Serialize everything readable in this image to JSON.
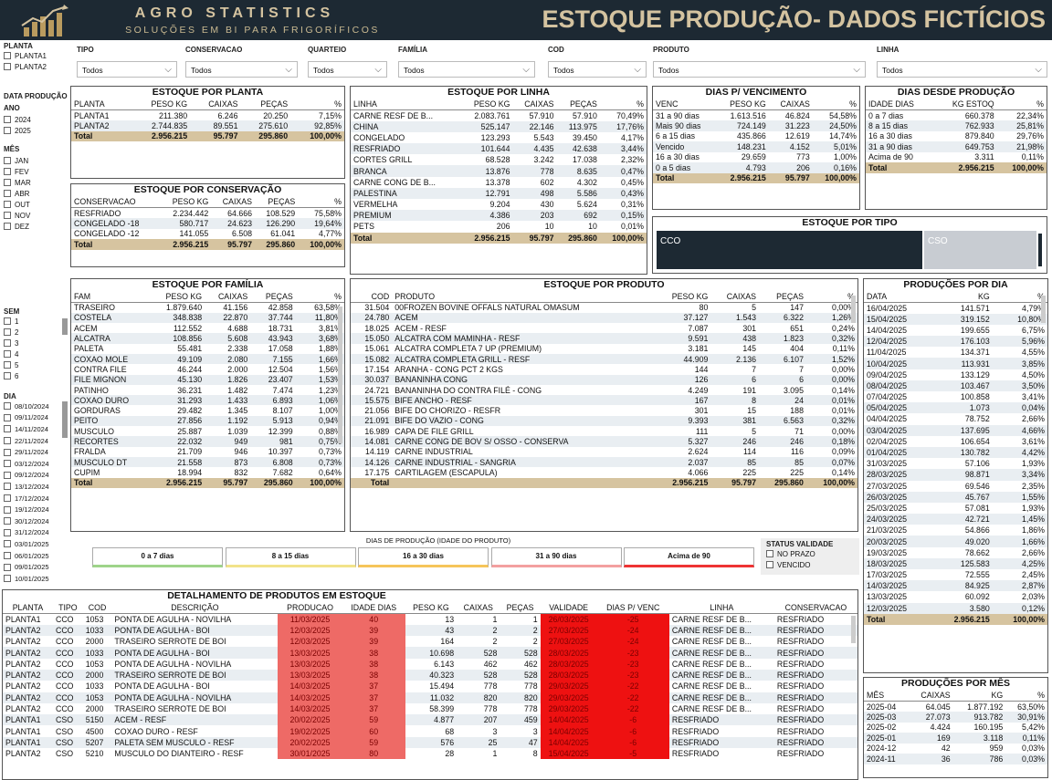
{
  "header": {
    "brand": "AGRO STATISTICS",
    "brand_sub": "SOLUÇÕES EM BI PARA FRIGORÍFICOS",
    "title": "ESTOQUE PRODUÇÃO- DADOS FICTÍCIOS"
  },
  "colors": {
    "header_bg": "#1d2933",
    "gold": "#d4c3a0",
    "total_row": "#d6c4a0",
    "alert_red": "#e11111",
    "light_red": "#ee6a66"
  },
  "sidebar": {
    "planta_label": "PLANTA",
    "plantas": [
      "PLANTA1",
      "PLANTA2"
    ],
    "data_producao_label": "DATA PRODUÇÃO",
    "ano_label": "ANO",
    "anos": [
      "2024",
      "2025"
    ],
    "mes_label": "MÊS",
    "meses": [
      "JAN",
      "FEV",
      "MAR",
      "ABR",
      "OUT",
      "NOV",
      "DEZ"
    ],
    "sem_label": "SEM",
    "semanas": [
      "1",
      "2",
      "3",
      "4",
      "5",
      "6"
    ],
    "dia_label": "DIA",
    "dias": [
      "08/10/2024",
      "09/11/2024",
      "14/11/2024",
      "22/11/2024",
      "29/11/2024",
      "03/12/2024",
      "09/12/2024",
      "13/12/2024",
      "17/12/2024",
      "19/12/2024",
      "30/12/2024",
      "31/12/2024",
      "03/01/2025",
      "06/01/2025",
      "09/01/2025",
      "10/01/2025"
    ]
  },
  "filters": [
    {
      "label": "TIPO",
      "value": "Todos"
    },
    {
      "label": "CONSERVACAO",
      "value": "Todos"
    },
    {
      "label": "QUARTEIO",
      "value": "Todos"
    },
    {
      "label": "FAMÍLIA",
      "value": "Todos"
    },
    {
      "label": "COD",
      "value": "Todos"
    },
    {
      "label": "PRODUTO",
      "value": "Todos"
    },
    {
      "label": "LINHA",
      "value": "Todos"
    }
  ],
  "estoque_planta": {
    "title": "ESTOQUE POR PLANTA",
    "headers": [
      "PLANTA",
      "PESO KG",
      "CAIXAS",
      "PEÇAS",
      "%"
    ],
    "rows": [
      [
        "PLANTA1",
        "211.380",
        "6.246",
        "20.250",
        "7,15%"
      ],
      [
        "PLANTA2",
        "2.744.835",
        "89.551",
        "275.610",
        "92,85%"
      ]
    ],
    "total": [
      "Total",
      "2.956.215",
      "95.797",
      "295.860",
      "100,00%"
    ]
  },
  "estoque_conservacao": {
    "title": "ESTOQUE POR CONSERVAÇÃO",
    "headers": [
      "CONSERVACAO",
      "PESO KG",
      "CAIXAS",
      "PEÇAS",
      "%"
    ],
    "rows": [
      [
        "RESFRIADO",
        "2.234.442",
        "64.666",
        "108.529",
        "75,58%"
      ],
      [
        "CONGELADO -18",
        "580.717",
        "24.623",
        "126.290",
        "19,64%"
      ],
      [
        "CONGELADO -12",
        "141.055",
        "6.508",
        "61.041",
        "4,77%"
      ]
    ],
    "total": [
      "Total",
      "2.956.215",
      "95.797",
      "295.860",
      "100,00%"
    ]
  },
  "estoque_linha": {
    "title": "ESTOQUE POR LINHA",
    "headers": [
      "LINHA",
      "PESO KG",
      "CAIXAS",
      "PEÇAS",
      "%"
    ],
    "rows": [
      [
        "CARNE RESF DE B...",
        "2.083.761",
        "57.910",
        "57.910",
        "70,49%"
      ],
      [
        "CHINA",
        "525.147",
        "22.146",
        "113.975",
        "17,76%"
      ],
      [
        "CONGELADO",
        "123.293",
        "5.543",
        "39.450",
        "4,17%"
      ],
      [
        "RESFRIADO",
        "101.644",
        "4.435",
        "42.638",
        "3,44%"
      ],
      [
        "CORTES GRILL",
        "68.528",
        "3.242",
        "17.038",
        "2,32%"
      ],
      [
        "BRANCA",
        "13.876",
        "778",
        "8.635",
        "0,47%"
      ],
      [
        "CARNE CONG DE B...",
        "13.378",
        "602",
        "4.302",
        "0,45%"
      ],
      [
        "PALESTINA",
        "12.791",
        "498",
        "5.586",
        "0,43%"
      ],
      [
        "VERMELHA",
        "9.204",
        "430",
        "5.624",
        "0,31%"
      ],
      [
        "PREMIUM",
        "4.386",
        "203",
        "692",
        "0,15%"
      ],
      [
        "PETS",
        "206",
        "10",
        "10",
        "0,01%"
      ]
    ],
    "total": [
      "Total",
      "2.956.215",
      "95.797",
      "295.860",
      "100,00%"
    ]
  },
  "dias_vencimento": {
    "title": "DIAS P/ VENCIMENTO",
    "headers": [
      "VENC",
      "PESO KG",
      "CAIXAS",
      "%"
    ],
    "rows": [
      [
        "31 a 90 dias",
        "1.613.516",
        "46.824",
        "54,58%"
      ],
      [
        "Mais 90 dias",
        "724.149",
        "31.223",
        "24,50%"
      ],
      [
        "6 a 15 dias",
        "435.866",
        "12.619",
        "14,74%"
      ],
      [
        "Vencido",
        "148.231",
        "4.152",
        "5,01%"
      ],
      [
        "16 a 30 dias",
        "29.659",
        "773",
        "1,00%"
      ],
      [
        "0 a 5 dias",
        "4.793",
        "206",
        "0,16%"
      ]
    ],
    "total": [
      "Total",
      "2.956.215",
      "95.797",
      "100,00%"
    ]
  },
  "dias_producao": {
    "title": "DIAS DESDE PRODUÇÃO",
    "headers": [
      "IDADE DIAS",
      "KG ESTOQ",
      "%"
    ],
    "rows": [
      [
        "0 a 7 dias",
        "660.378",
        "22,34%"
      ],
      [
        "8 a 15 dias",
        "762.933",
        "25,81%"
      ],
      [
        "16 a 30 dias",
        "879.840",
        "29,76%"
      ],
      [
        "31 a 90 dias",
        "649.753",
        "21,98%"
      ],
      [
        "Acima de 90",
        "3.311",
        "0,11%"
      ]
    ],
    "total": [
      "Total",
      "2.956.215",
      "100,00%"
    ]
  },
  "estoque_tipo": {
    "title": "ESTOQUE POR TIPO",
    "cco": "CCO",
    "cso": "CSO",
    "cco_share": 0.7,
    "cso_share": 0.3
  },
  "estoque_familia": {
    "title": "ESTOQUE POR FAMÍLIA",
    "headers": [
      "FAM",
      "PESO KG",
      "CAIXAS",
      "PEÇAS",
      "%"
    ],
    "rows": [
      [
        "TRASEIRO",
        "1.879.640",
        "41.156",
        "42.858",
        "63,58%"
      ],
      [
        "COSTELA",
        "348.838",
        "22.870",
        "37.744",
        "11,80%"
      ],
      [
        "ACEM",
        "112.552",
        "4.688",
        "18.731",
        "3,81%"
      ],
      [
        "ALCATRA",
        "108.856",
        "5.608",
        "43.943",
        "3,68%"
      ],
      [
        "PALETA",
        "55.481",
        "2.338",
        "17.058",
        "1,88%"
      ],
      [
        "COXAO MOLE",
        "49.109",
        "2.080",
        "7.155",
        "1,66%"
      ],
      [
        "CONTRA FILE",
        "46.244",
        "2.000",
        "12.504",
        "1,56%"
      ],
      [
        "FILE MIGNON",
        "45.130",
        "1.826",
        "23.407",
        "1,53%"
      ],
      [
        "PATINHO",
        "36.231",
        "1.482",
        "7.474",
        "1,23%"
      ],
      [
        "COXAO DURO",
        "31.293",
        "1.433",
        "6.893",
        "1,06%"
      ],
      [
        "GORDURAS",
        "29.482",
        "1.345",
        "8.107",
        "1,00%"
      ],
      [
        "PEITO",
        "27.856",
        "1.192",
        "5.913",
        "0,94%"
      ],
      [
        "MUSCULO",
        "25.887",
        "1.039",
        "12.399",
        "0,88%"
      ],
      [
        "RECORTES",
        "22.032",
        "949",
        "981",
        "0,75%"
      ],
      [
        "FRALDA",
        "21.709",
        "946",
        "10.397",
        "0,73%"
      ],
      [
        "MUSCULO DT",
        "21.558",
        "873",
        "6.808",
        "0,73%"
      ],
      [
        "CUPIM",
        "18.994",
        "832",
        "7.682",
        "0,64%"
      ]
    ],
    "total": [
      "Total",
      "2.956.215",
      "95.797",
      "295.860",
      "100,00%"
    ]
  },
  "estoque_produto": {
    "title": "ESTOQUE POR PRODUTO",
    "headers": [
      "COD",
      "PRODUTO",
      "PESO KG",
      "CAIXAS",
      "PEÇAS",
      "%"
    ],
    "rows": [
      [
        "31.504",
        "00FROZEN BOVINE OFFALS NATURAL OMASUM",
        "80",
        "5",
        "147",
        "0,00%"
      ],
      [
        "24.780",
        "ACEM",
        "37.127",
        "1.543",
        "6.322",
        "1,26%"
      ],
      [
        "18.025",
        "ACEM - RESF",
        "7.087",
        "301",
        "651",
        "0,24%"
      ],
      [
        "15.050",
        "ALCATRA COM MAMINHA - RESF",
        "9.591",
        "438",
        "1.823",
        "0,32%"
      ],
      [
        "15.061",
        "ALCATRA COMPLETA 7 UP (PREMIUM)",
        "3.181",
        "145",
        "404",
        "0,11%"
      ],
      [
        "15.082",
        "ALCATRA COMPLETA GRILL - RESF",
        "44.909",
        "2.136",
        "6.107",
        "1,52%"
      ],
      [
        "17.154",
        "ARANHA - CONG PCT 2 KGS",
        "144",
        "7",
        "7",
        "0,00%"
      ],
      [
        "30.037",
        "BANANINHA CONG",
        "126",
        "6",
        "6",
        "0,00%"
      ],
      [
        "24.721",
        "BANANINHA DO CONTRA FILÉ - CONG",
        "4.249",
        "191",
        "3.095",
        "0,14%"
      ],
      [
        "15.575",
        "BIFE ANCHO - RESF",
        "167",
        "8",
        "24",
        "0,01%"
      ],
      [
        "21.056",
        "BIFE DO CHORIZO - RESFR",
        "301",
        "15",
        "188",
        "0,01%"
      ],
      [
        "21.091",
        "BIFE DO VAZIO - CONG",
        "9.393",
        "381",
        "6.563",
        "0,32%"
      ],
      [
        "16.989",
        "CAPA DE FILE GRILL",
        "111",
        "5",
        "71",
        "0,00%"
      ],
      [
        "14.081",
        "CARNE CONG DE BOV S/ OSSO - CONSERVA",
        "5.327",
        "246",
        "246",
        "0,18%"
      ],
      [
        "14.119",
        "CARNE INDUSTRIAL",
        "2.624",
        "114",
        "116",
        "0,09%"
      ],
      [
        "14.126",
        "CARNE INDUSTRIAL - SANGRIA",
        "2.037",
        "85",
        "85",
        "0,07%"
      ],
      [
        "17.175",
        "CARTILAGEM (ESCAPULA)",
        "4.066",
        "225",
        "225",
        "0,14%"
      ]
    ],
    "total": [
      "Total",
      "",
      "2.956.215",
      "95.797",
      "295.860",
      "100,00%"
    ]
  },
  "producoes_dia": {
    "title": "PRODUÇÕES POR DIA",
    "headers": [
      "DATA",
      "KG",
      "%"
    ],
    "rows": [
      [
        "16/04/2025",
        "141.571",
        "4,79%"
      ],
      [
        "15/04/2025",
        "319.152",
        "10,80%"
      ],
      [
        "14/04/2025",
        "199.655",
        "6,75%"
      ],
      [
        "12/04/2025",
        "176.103",
        "5,96%"
      ],
      [
        "11/04/2025",
        "134.371",
        "4,55%"
      ],
      [
        "10/04/2025",
        "113.931",
        "3,85%"
      ],
      [
        "09/04/2025",
        "133.129",
        "4,50%"
      ],
      [
        "08/04/2025",
        "103.467",
        "3,50%"
      ],
      [
        "07/04/2025",
        "100.858",
        "3,41%"
      ],
      [
        "05/04/2025",
        "1.073",
        "0,04%"
      ],
      [
        "04/04/2025",
        "78.752",
        "2,66%"
      ],
      [
        "03/04/2025",
        "137.695",
        "4,66%"
      ],
      [
        "02/04/2025",
        "106.654",
        "3,61%"
      ],
      [
        "01/04/2025",
        "130.782",
        "4,42%"
      ],
      [
        "31/03/2025",
        "57.106",
        "1,93%"
      ],
      [
        "28/03/2025",
        "98.871",
        "3,34%"
      ],
      [
        "27/03/2025",
        "69.546",
        "2,35%"
      ],
      [
        "26/03/2025",
        "45.767",
        "1,55%"
      ],
      [
        "25/03/2025",
        "57.081",
        "1,93%"
      ],
      [
        "24/03/2025",
        "42.721",
        "1,45%"
      ],
      [
        "21/03/2025",
        "54.866",
        "1,86%"
      ],
      [
        "20/03/2025",
        "49.020",
        "1,66%"
      ],
      [
        "19/03/2025",
        "78.662",
        "2,66%"
      ],
      [
        "18/03/2025",
        "125.583",
        "4,25%"
      ],
      [
        "17/03/2025",
        "72.555",
        "2,45%"
      ],
      [
        "14/03/2025",
        "84.925",
        "2,87%"
      ],
      [
        "13/03/2025",
        "60.092",
        "2,03%"
      ],
      [
        "12/03/2025",
        "3.580",
        "0,12%"
      ]
    ],
    "total": [
      "Total",
      "2.956.215",
      "100,00%"
    ]
  },
  "producoes_mes": {
    "title": "PRODUÇÕES POR MÊS",
    "headers": [
      "MÊS",
      "CAIXAS",
      "KG",
      "%"
    ],
    "rows": [
      [
        "2025-04",
        "64.045",
        "1.877.192",
        "63,50%"
      ],
      [
        "2025-03",
        "27.073",
        "913.782",
        "30,91%"
      ],
      [
        "2025-02",
        "4.424",
        "160.195",
        "5,42%"
      ],
      [
        "2025-01",
        "169",
        "3.118",
        "0,11%"
      ],
      [
        "2024-12",
        "42",
        "959",
        "0,03%"
      ],
      [
        "2024-11",
        "36",
        "786",
        "0,03%"
      ]
    ]
  },
  "aging_legend": {
    "title": "DIAS DE PRODUÇÃO (IDADE DO PRODUTO)",
    "items": [
      {
        "label": "0 a 7 dias",
        "color": "#9ed48a"
      },
      {
        "label": "8 a 15 dias",
        "color": "#f2e38a"
      },
      {
        "label": "16 a 30 dias",
        "color": "#f6c55a"
      },
      {
        "label": "31 a 90 dias",
        "color": "#f3a0a0"
      },
      {
        "label": "Acima de 90",
        "color": "#e33"
      }
    ]
  },
  "status_validade": {
    "title": "STATUS VALIDADE",
    "items": [
      "NO PRAZO",
      "VENCIDO"
    ]
  },
  "detalhamento": {
    "title": "DETALHAMENTO DE PRODUTOS EM ESTOQUE",
    "headers": [
      "PLANTA",
      "TIPO",
      "COD",
      "DESCRIÇÃO",
      "PRODUCAO",
      "IDADE DIAS",
      "PESO KG",
      "CAIXAS",
      "PEÇAS",
      "VALIDADE",
      "DIAS P/ VENC",
      "LINHA",
      "CONSERVACAO"
    ],
    "rows": [
      [
        "PLANTA1",
        "CCO",
        "1053",
        "PONTA DE AGULHA - NOVILHA",
        "11/03/2025",
        "40",
        "13",
        "1",
        "1",
        "26/03/2025",
        "-25",
        "CARNE RESF DE B...",
        "RESFRIADO"
      ],
      [
        "PLANTA2",
        "CCO",
        "1033",
        "PONTA DE AGULHA - BOI",
        "12/03/2025",
        "39",
        "43",
        "2",
        "2",
        "27/03/2025",
        "-24",
        "CARNE RESF DE B...",
        "RESFRIADO"
      ],
      [
        "PLANTA2",
        "CCO",
        "2000",
        "TRASEIRO SERROTE DE BOI",
        "12/03/2025",
        "39",
        "164",
        "2",
        "2",
        "27/03/2025",
        "-24",
        "CARNE RESF DE B...",
        "RESFRIADO"
      ],
      [
        "PLANTA2",
        "CCO",
        "1033",
        "PONTA DE AGULHA - BOI",
        "13/03/2025",
        "38",
        "10.698",
        "528",
        "528",
        "28/03/2025",
        "-23",
        "CARNE RESF DE B...",
        "RESFRIADO"
      ],
      [
        "PLANTA2",
        "CCO",
        "1053",
        "PONTA DE AGULHA - NOVILHA",
        "13/03/2025",
        "38",
        "6.143",
        "462",
        "462",
        "28/03/2025",
        "-23",
        "CARNE RESF DE B...",
        "RESFRIADO"
      ],
      [
        "PLANTA2",
        "CCO",
        "2000",
        "TRASEIRO SERROTE DE BOI",
        "13/03/2025",
        "38",
        "40.323",
        "528",
        "528",
        "28/03/2025",
        "-23",
        "CARNE RESF DE B...",
        "RESFRIADO"
      ],
      [
        "PLANTA2",
        "CCO",
        "1033",
        "PONTA DE AGULHA - BOI",
        "14/03/2025",
        "37",
        "15.494",
        "778",
        "778",
        "29/03/2025",
        "-22",
        "CARNE RESF DE B...",
        "RESFRIADO"
      ],
      [
        "PLANTA2",
        "CCO",
        "1053",
        "PONTA DE AGULHA - NOVILHA",
        "14/03/2025",
        "37",
        "11.032",
        "820",
        "820",
        "29/03/2025",
        "-22",
        "CARNE RESF DE B...",
        "RESFRIADO"
      ],
      [
        "PLANTA2",
        "CCO",
        "2000",
        "TRASEIRO SERROTE DE BOI",
        "14/03/2025",
        "37",
        "58.399",
        "778",
        "778",
        "29/03/2025",
        "-22",
        "CARNE RESF DE B...",
        "RESFRIADO"
      ],
      [
        "PLANTA1",
        "CSO",
        "5150",
        "ACEM - RESF",
        "20/02/2025",
        "59",
        "4.877",
        "207",
        "459",
        "14/04/2025",
        "-6",
        "RESFRIADO",
        "RESFRIADO"
      ],
      [
        "PLANTA1",
        "CSO",
        "4500",
        "COXAO DURO - RESF",
        "19/02/2025",
        "60",
        "68",
        "3",
        "3",
        "14/04/2025",
        "-6",
        "RESFRIADO",
        "RESFRIADO"
      ],
      [
        "PLANTA1",
        "CSO",
        "5207",
        "PALETA SEM MUSCULO - RESF",
        "20/02/2025",
        "59",
        "576",
        "25",
        "47",
        "14/04/2025",
        "-6",
        "RESFRIADO",
        "RESFRIADO"
      ],
      [
        "PLANTA2",
        "CSO",
        "5210",
        "MUSCULO DO DIANTEIRO - RESF",
        "30/01/2025",
        "80",
        "28",
        "1",
        "8",
        "15/04/2025",
        "-5",
        "RESFRIADO",
        "RESFRIADO"
      ]
    ]
  }
}
